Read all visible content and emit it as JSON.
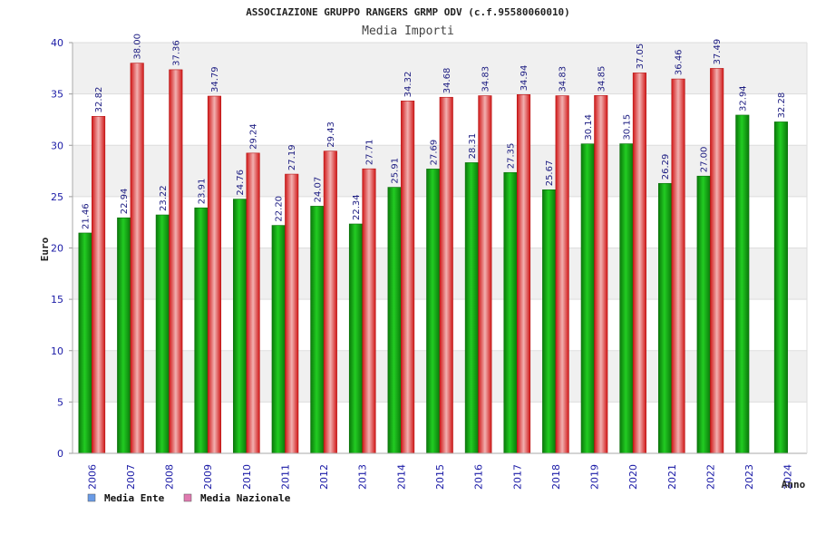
{
  "chart_data": {
    "type": "bar",
    "title": "ASSOCIAZIONE GRUPPO RANGERS GRMP ODV (c.f.95580060010)",
    "subtitle": "Media Importi",
    "ylabel": "Euro",
    "xlabel": "Anno",
    "ylim": [
      0,
      40
    ],
    "yticks": [
      "0",
      "5",
      "10",
      "15",
      "20",
      "25",
      "30",
      "35",
      "40"
    ],
    "categories": [
      "2006",
      "2007",
      "2008",
      "2009",
      "2010",
      "2011",
      "2012",
      "2013",
      "2014",
      "2015",
      "2016",
      "2017",
      "2018",
      "2019",
      "2020",
      "2021",
      "2022",
      "2023",
      "2024"
    ],
    "series": [
      {
        "name": "Media Ente",
        "color": "#22aa22",
        "legend_color": "#6a9be6",
        "values": [
          21.46,
          22.94,
          23.22,
          23.91,
          24.76,
          22.2,
          24.07,
          22.34,
          25.91,
          27.69,
          28.31,
          27.35,
          25.67,
          30.14,
          30.15,
          26.29,
          27.0,
          32.94,
          32.28
        ],
        "labels": [
          "21.46",
          "22.94",
          "23.22",
          "23.91",
          "24.76",
          "22.20",
          "24.07",
          "22.34",
          "25.91",
          "27.69",
          "28.31",
          "27.35",
          "25.67",
          "30.14",
          "30.15",
          "26.29",
          "27.00",
          "32.94",
          "32.28"
        ]
      },
      {
        "name": "Media Nazionale",
        "color": "#e02020",
        "legend_color": "#e07ab0",
        "values": [
          32.82,
          38.0,
          37.36,
          34.79,
          29.24,
          27.19,
          29.43,
          27.71,
          34.32,
          34.68,
          34.83,
          34.94,
          34.83,
          34.85,
          37.05,
          36.46,
          37.49,
          null,
          null
        ],
        "labels": [
          "32.82",
          "38.00",
          "37.36",
          "34.79",
          "29.24",
          "27.19",
          "29.43",
          "27.71",
          "34.32",
          "34.68",
          "34.83",
          "34.94",
          "34.83",
          "34.85",
          "37.05",
          "36.46",
          "37.49",
          "",
          ""
        ]
      }
    ],
    "grid": true,
    "legend": "bottom-left"
  }
}
